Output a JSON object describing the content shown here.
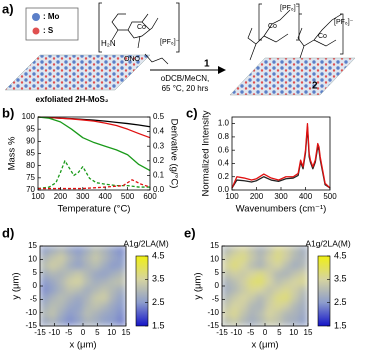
{
  "scheme": {
    "panel": "a)",
    "legend": [
      ": Mo",
      ": S"
    ],
    "substrate": "exfoliated 2H-MoS₂",
    "conditions": [
      "oDCB/MeCN,",
      "65 °C, 20 hrs"
    ],
    "reagent": {
      "label": "1",
      "amine": "H₂N",
      "metal": "Co",
      "counterion": "[PF₆]⁻",
      "nitrite": "ONO"
    },
    "product": {
      "label": "2",
      "metal": [
        "Co",
        "Co"
      ],
      "counterion": [
        "[PF₆]⁻",
        "[PF₆]⁻"
      ]
    }
  },
  "chart_data": [
    {
      "type": "line",
      "panel": "b)",
      "xlabel": "Temperature (°C)",
      "ylabel": "Mass %",
      "y2label": "Derivative (g/°C)",
      "xlim": [
        100,
        600
      ],
      "xticks": [
        100,
        200,
        300,
        400,
        500,
        600
      ],
      "ylim": [
        70,
        100
      ],
      "yticks": [
        70,
        75,
        80,
        85,
        90,
        95,
        100
      ],
      "y2lim": [
        0,
        0.5
      ],
      "y2ticks": [
        {
          "value": 0,
          "label": "0.0"
        },
        0.1,
        0.2,
        0.3,
        0.4,
        0.5
      ],
      "series": [
        {
          "color": "#000000",
          "x": [
            100,
            150,
            200,
            250,
            300,
            350,
            400,
            450,
            500,
            550,
            600
          ],
          "values": [
            100,
            99.8,
            99.5,
            99.3,
            99,
            98.7,
            98.3,
            97.8,
            97.3,
            96.7,
            96
          ]
        },
        {
          "color": "#e01010",
          "x": [
            100,
            150,
            200,
            250,
            300,
            350,
            400,
            450,
            500,
            550,
            600
          ],
          "values": [
            100,
            99.8,
            99.5,
            99.2,
            98.8,
            98.3,
            97.5,
            96.5,
            95,
            93.2,
            91.5
          ]
        },
        {
          "color": "#1a9a1a",
          "x": [
            100,
            150,
            200,
            250,
            300,
            350,
            400,
            450,
            500,
            550,
            600
          ],
          "values": [
            100,
            99.5,
            98,
            95,
            91.5,
            89.5,
            88,
            86.5,
            84.5,
            80.5,
            78
          ]
        },
        {
          "color": "#1a9a1a",
          "dash": true,
          "axis": "y2",
          "x": [
            100,
            150,
            180,
            200,
            220,
            240,
            260,
            280,
            300,
            330,
            360,
            400,
            450,
            500,
            550,
            600
          ],
          "values": [
            0.01,
            0.02,
            0.05,
            0.12,
            0.2,
            0.15,
            0.1,
            0.12,
            0.16,
            0.08,
            0.05,
            0.04,
            0.03,
            0.03,
            0.02,
            0.02
          ]
        },
        {
          "color": "#e01010",
          "dash": true,
          "axis": "y2",
          "x": [
            100,
            200,
            300,
            400,
            480,
            520,
            560,
            600
          ],
          "values": [
            0.01,
            0.01,
            0.01,
            0.02,
            0.03,
            0.07,
            0.04,
            0.02
          ]
        }
      ]
    },
    {
      "type": "line",
      "panel": "c)",
      "xlabel": "Wavenumbers (cm⁻¹)",
      "ylabel": "Normalized Intensity",
      "xlim": [
        100,
        500
      ],
      "xticks": [
        100,
        200,
        300,
        400,
        500
      ],
      "ylim": [
        0,
        1.1
      ],
      "yticks": [
        {
          "value": 0,
          "label": "0.0"
        },
        0.2,
        0.4,
        0.6,
        0.8,
        {
          "value": 1,
          "label": "1.0"
        }
      ],
      "series": [
        {
          "color": "#222222",
          "x": [
            100,
            120,
            150,
            180,
            200,
            230,
            260,
            290,
            320,
            350,
            370,
            380,
            390,
            400,
            408,
            415,
            420,
            430,
            440,
            450,
            455,
            460,
            470,
            480,
            500
          ],
          "values": [
            0.03,
            0.15,
            0.14,
            0.12,
            0.14,
            0.2,
            0.15,
            0.13,
            0.17,
            0.18,
            0.22,
            0.42,
            0.32,
            0.56,
            0.95,
            0.5,
            0.42,
            0.32,
            0.42,
            0.65,
            0.6,
            0.46,
            0.27,
            0.08,
            0.03
          ]
        },
        {
          "color": "#e01010",
          "x": [
            100,
            120,
            150,
            180,
            200,
            230,
            260,
            290,
            320,
            350,
            370,
            380,
            390,
            400,
            408,
            415,
            420,
            430,
            440,
            450,
            455,
            460,
            470,
            480,
            500
          ],
          "values": [
            0.03,
            0.2,
            0.18,
            0.15,
            0.17,
            0.24,
            0.18,
            0.15,
            0.2,
            0.2,
            0.25,
            0.45,
            0.35,
            0.6,
            1.0,
            0.55,
            0.45,
            0.35,
            0.45,
            0.7,
            0.65,
            0.5,
            0.3,
            0.1,
            0.03
          ]
        }
      ]
    },
    {
      "type": "heatmap",
      "panel": "d)",
      "xlabel": "x (μm)",
      "ylabel": "y (μm)",
      "cbar_label": "A1g/2LA(M)",
      "xlim": [
        -15,
        15
      ],
      "xticks": [
        -15,
        -10,
        -5,
        0,
        5,
        10,
        15
      ],
      "ylim": [
        -15,
        15
      ],
      "yticks": [
        -15,
        -10,
        -5,
        0,
        5,
        10,
        15
      ],
      "clim": [
        1.5,
        4.5
      ],
      "cticks": [
        1.5,
        2.5,
        3.5,
        4.5
      ],
      "colormap": [
        "#1414c8",
        "#8c9ccc",
        "#d6d4a0",
        "#f0f014"
      ],
      "z": [
        [
          2.6,
          2.8,
          3.0,
          2.7,
          2.5,
          2.8,
          3.1,
          2.9,
          2.6,
          2.4
        ],
        [
          2.9,
          3.2,
          3.4,
          3.0,
          2.7,
          3.0,
          3.3,
          3.0,
          2.7,
          2.5
        ],
        [
          3.1,
          3.4,
          3.2,
          2.8,
          2.6,
          2.9,
          3.1,
          2.8,
          2.5,
          2.6
        ],
        [
          2.8,
          3.0,
          2.9,
          3.1,
          3.3,
          3.0,
          2.7,
          2.6,
          2.8,
          3.0
        ],
        [
          2.5,
          2.7,
          3.0,
          3.4,
          3.5,
          3.1,
          2.8,
          2.9,
          3.1,
          3.2
        ],
        [
          2.4,
          2.6,
          2.9,
          3.2,
          3.1,
          2.8,
          3.0,
          3.2,
          3.0,
          2.8
        ],
        [
          2.6,
          2.9,
          3.1,
          2.9,
          2.7,
          2.9,
          3.3,
          3.4,
          2.9,
          2.6
        ],
        [
          2.8,
          3.1,
          3.0,
          2.7,
          2.6,
          3.0,
          3.2,
          3.0,
          2.7,
          2.5
        ],
        [
          3.0,
          3.2,
          2.8,
          2.5,
          2.7,
          3.1,
          2.9,
          2.7,
          2.6,
          2.4
        ],
        [
          2.7,
          2.9,
          2.6,
          2.4,
          2.6,
          2.9,
          2.8,
          2.6,
          2.5,
          2.3
        ]
      ]
    },
    {
      "type": "heatmap",
      "panel": "e)",
      "xlabel": "x (μm)",
      "ylabel": "y (μm)",
      "cbar_label": "A1g/2LA(M)",
      "xlim": [
        -15,
        15
      ],
      "xticks": [
        -15,
        -10,
        -5,
        0,
        5,
        10,
        15
      ],
      "ylim": [
        -15,
        15
      ],
      "yticks": [
        -15,
        -10,
        -5,
        0,
        5,
        10,
        15
      ],
      "clim": [
        1.5,
        4.5
      ],
      "cticks": [
        1.5,
        2.5,
        3.5,
        4.5
      ],
      "colormap": [
        "#1414c8",
        "#8c9ccc",
        "#d6d4a0",
        "#f0f014"
      ],
      "z": [
        [
          3.0,
          3.3,
          3.5,
          3.2,
          2.9,
          3.2,
          3.6,
          3.4,
          3.1,
          2.8
        ],
        [
          3.3,
          3.6,
          3.7,
          3.3,
          3.0,
          3.4,
          3.7,
          3.4,
          3.0,
          2.9
        ],
        [
          3.5,
          3.8,
          3.5,
          3.1,
          2.9,
          3.3,
          3.5,
          3.1,
          2.8,
          3.0
        ],
        [
          3.2,
          3.4,
          3.3,
          3.5,
          3.7,
          3.4,
          3.0,
          2.9,
          3.2,
          3.4
        ],
        [
          2.9,
          3.1,
          3.4,
          3.8,
          3.9,
          3.5,
          3.1,
          3.3,
          3.5,
          3.6
        ],
        [
          2.8,
          3.0,
          3.3,
          3.6,
          3.5,
          3.2,
          3.4,
          3.6,
          3.4,
          3.1
        ],
        [
          3.0,
          3.3,
          3.5,
          3.3,
          3.0,
          3.3,
          3.7,
          3.8,
          3.3,
          2.9
        ],
        [
          3.2,
          3.5,
          3.4,
          3.0,
          2.9,
          3.4,
          3.6,
          3.4,
          3.0,
          2.8
        ],
        [
          3.4,
          3.6,
          3.2,
          2.9,
          3.1,
          3.5,
          3.3,
          3.0,
          2.9,
          2.7
        ],
        [
          3.1,
          3.3,
          3.0,
          2.8,
          3.0,
          3.3,
          3.2,
          2.9,
          2.8,
          2.6
        ]
      ]
    }
  ]
}
